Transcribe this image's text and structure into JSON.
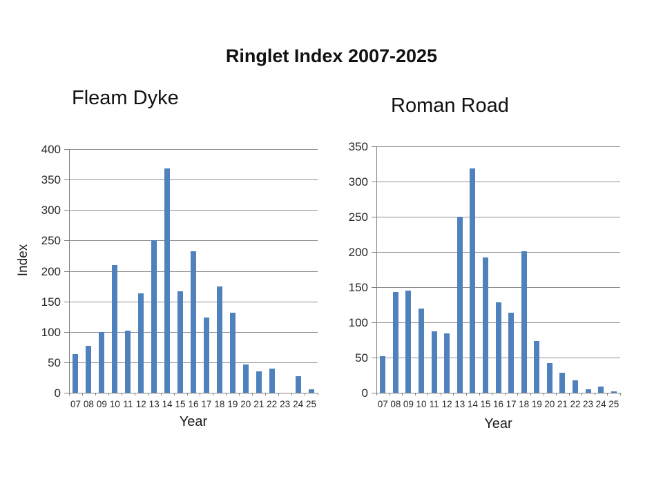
{
  "page": {
    "title": "Ringlet Index 2007-2025"
  },
  "colors": {
    "bar": "#4f81bd",
    "grid": "#8e8e8e",
    "axis": "#7f7f7f",
    "text": "#262626"
  },
  "chart_data": [
    {
      "type": "bar",
      "title": "Fleam Dyke",
      "xlabel": "Year",
      "ylabel": "Index",
      "categories": [
        "07",
        "08",
        "09",
        "10",
        "11",
        "12",
        "13",
        "14",
        "15",
        "16",
        "17",
        "18",
        "19",
        "20",
        "21",
        "22",
        "23",
        "24",
        "25"
      ],
      "values": [
        64,
        77,
        100,
        210,
        102,
        163,
        250,
        368,
        167,
        232,
        124,
        175,
        131,
        46,
        35,
        40,
        0,
        27,
        6
      ],
      "ylim": [
        0,
        400
      ],
      "ytick_step": 50,
      "grid": true,
      "legend_position": "none"
    },
    {
      "type": "bar",
      "title": "Roman Road",
      "xlabel": "Year",
      "ylabel": "",
      "categories": [
        "07",
        "08",
        "09",
        "10",
        "11",
        "12",
        "13",
        "14",
        "15",
        "16",
        "17",
        "18",
        "19",
        "20",
        "21",
        "22",
        "23",
        "24",
        "25"
      ],
      "values": [
        52,
        143,
        145,
        120,
        87,
        84,
        250,
        319,
        192,
        128,
        114,
        201,
        74,
        42,
        28,
        18,
        5,
        9,
        2
      ],
      "ylim": [
        0,
        350
      ],
      "ytick_step": 50,
      "grid": true,
      "legend_position": "none"
    }
  ]
}
